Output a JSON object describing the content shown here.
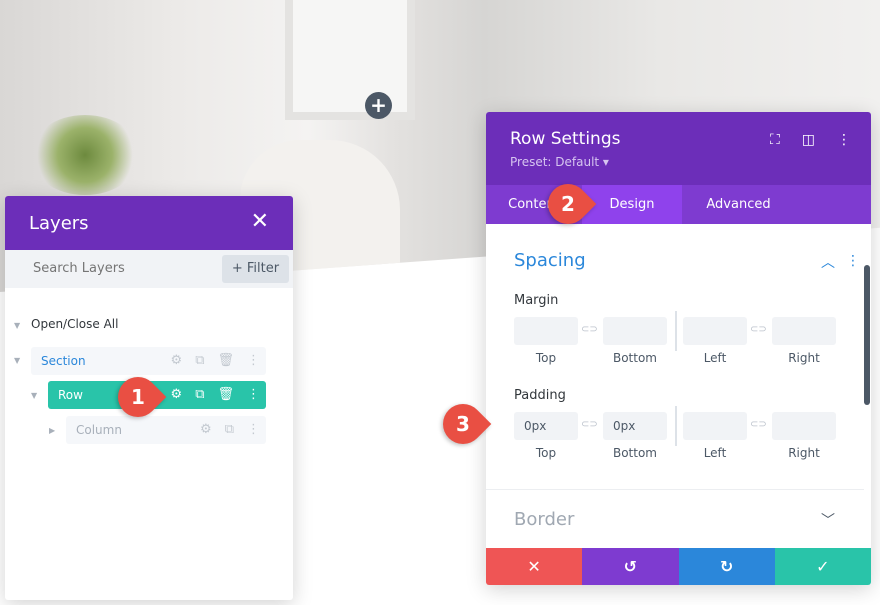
{
  "canvas": {
    "add_icon": "plus-icon"
  },
  "layers": {
    "title": "Layers",
    "search_placeholder": "Search Layers",
    "filter_label": "+ Filter",
    "open_close": "Open/Close All",
    "items": [
      {
        "label": "Section"
      },
      {
        "label": "Row"
      },
      {
        "label": "Column"
      }
    ]
  },
  "row_settings": {
    "title": "Row Settings",
    "preset": "Preset: Default ▾",
    "tabs": [
      {
        "label": "Content"
      },
      {
        "label": "Design"
      },
      {
        "label": "Advanced"
      }
    ],
    "spacing": {
      "title": "Spacing",
      "margin_label": "Margin",
      "padding_label": "Padding",
      "sides": [
        "Top",
        "Bottom",
        "Left",
        "Right"
      ],
      "margin_values": [
        "",
        "",
        "",
        ""
      ],
      "padding_values": [
        "0px",
        "0px",
        "",
        ""
      ]
    },
    "border": {
      "title": "Border"
    }
  },
  "markers": [
    "1",
    "2",
    "3"
  ],
  "colors": {
    "purple": "#6c2eb9",
    "tab": "#7e3bd0",
    "tab_active": "#8f42ec",
    "green": "#29c4a9",
    "blue": "#2b87da",
    "red": "#ef5555",
    "marker": "#e94f43"
  }
}
